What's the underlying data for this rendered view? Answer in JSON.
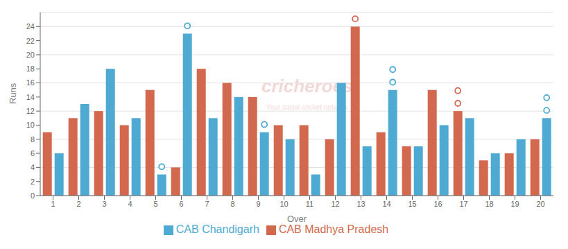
{
  "chart_data": {
    "type": "bar",
    "xlabel": "Over",
    "ylabel": "Runs",
    "categories": [
      1,
      2,
      3,
      4,
      5,
      6,
      7,
      8,
      9,
      10,
      11,
      12,
      13,
      14,
      15,
      16,
      17,
      18,
      19,
      20
    ],
    "series": [
      {
        "name": "CAB Madhya Pradesh",
        "color": "#d2694e",
        "values": [
          9,
          11,
          12,
          10,
          15,
          4,
          18,
          16,
          14,
          10,
          10,
          8,
          24,
          9,
          7,
          15,
          12,
          5,
          6,
          8
        ],
        "wickets": [
          0,
          0,
          0,
          0,
          0,
          0,
          0,
          0,
          0,
          0,
          0,
          0,
          1,
          0,
          0,
          0,
          2,
          0,
          0,
          0
        ]
      },
      {
        "name": "CAB Chandigarh",
        "color": "#4eaad2",
        "values": [
          6,
          13,
          18,
          11,
          3,
          23,
          11,
          14,
          9,
          8,
          3,
          16,
          7,
          15,
          7,
          10,
          11,
          6,
          8,
          11
        ],
        "wickets": [
          0,
          0,
          0,
          0,
          1,
          1,
          0,
          0,
          1,
          0,
          0,
          0,
          0,
          2,
          0,
          0,
          0,
          0,
          0,
          2
        ]
      }
    ],
    "ylim": [
      0,
      26
    ],
    "yticks": [
      0,
      2,
      4,
      6,
      8,
      10,
      12,
      14,
      16,
      18,
      20,
      22,
      24
    ],
    "grid": true,
    "legend": "bottom",
    "annotations": [
      "cricheroes",
      "Your social cricket network"
    ]
  }
}
